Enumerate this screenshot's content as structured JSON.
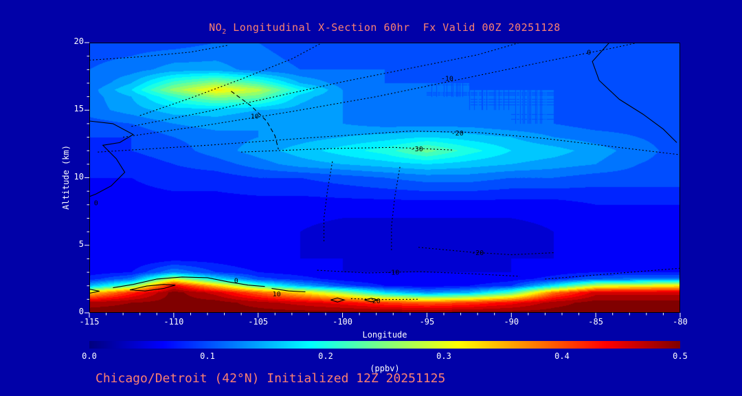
{
  "figure": {
    "title": {
      "prefix": "NO",
      "sub": "2",
      "rest": " Longitudinal X-Section 60hr  Fx Valid 00Z 20251128"
    },
    "footer": "Chicago/Detroit (42°N) Initialized 12Z 20251125"
  },
  "colors": {
    "background": "#0101a8",
    "title_text": "#fa8072",
    "axis_text": "#ffffff",
    "contour_lines": "#000000"
  },
  "axes": {
    "xlabel": "Longitude",
    "ylabel": "Altitude (km)",
    "x_ticks": {
      "values": [
        -115,
        -110,
        -105,
        -100,
        -95,
        -90,
        -85,
        -80
      ],
      "labels": [
        "-115",
        "-110",
        "-105",
        "-100",
        "-95",
        "-90",
        "-85",
        "-80"
      ]
    },
    "y_ticks": {
      "values": [
        0,
        5,
        10,
        15,
        20
      ],
      "labels": [
        "0",
        "5",
        "10",
        "15",
        "20"
      ]
    }
  },
  "colorbar": {
    "min": 0.0,
    "max": 0.5,
    "tick_values": [
      0.0,
      0.1,
      0.2,
      0.3,
      0.4,
      0.5
    ],
    "tick_labels": [
      "0.0",
      "0.1",
      "0.2",
      "0.3",
      "0.4",
      "0.5"
    ],
    "label": "(ppbv)"
  },
  "chart_data": {
    "type": "heatmap",
    "subtype": "filled-contour-cross-section",
    "title": "NO2 Longitudinal X-Section 60hr  Fx Valid 00Z 20251128",
    "xlabel": "Longitude",
    "ylabel": "Altitude (km)",
    "xlim": [
      -115,
      -80
    ],
    "ylim": [
      0,
      20
    ],
    "value_units": "ppbv",
    "value_range": [
      0,
      0.5
    ],
    "contour_interval": 0.02,
    "colormap": "jet",
    "y_order": "ascending",
    "x": [
      -115,
      -112.5,
      -110,
      -107.5,
      -105,
      -102.5,
      -100,
      -97.5,
      -95,
      -92.5,
      -90,
      -87.5,
      -85,
      -82.5,
      -80
    ],
    "y": [
      0,
      0.75,
      1.5,
      2,
      2.5,
      3,
      4,
      6,
      8,
      10,
      11,
      12,
      13,
      14,
      15,
      16,
      16.5,
      17,
      18,
      20
    ],
    "values": [
      [
        0.5,
        0.5,
        0.5,
        0.5,
        0.5,
        0.5,
        0.5,
        0.5,
        0.5,
        0.5,
        0.5,
        0.5,
        0.5,
        0.5,
        0.5
      ],
      [
        0.48,
        0.49,
        0.5,
        0.5,
        0.48,
        0.46,
        0.44,
        0.41,
        0.39,
        0.41,
        0.44,
        0.48,
        0.5,
        0.5,
        0.5
      ],
      [
        0.33,
        0.42,
        0.5,
        0.46,
        0.39,
        0.33,
        0.26,
        0.17,
        0.13,
        0.15,
        0.22,
        0.38,
        0.46,
        0.46,
        0.46
      ],
      [
        0.15,
        0.24,
        0.45,
        0.34,
        0.22,
        0.15,
        0.1,
        0.07,
        0.06,
        0.07,
        0.09,
        0.18,
        0.29,
        0.31,
        0.32
      ],
      [
        0.08,
        0.12,
        0.29,
        0.18,
        0.1,
        0.08,
        0.06,
        0.05,
        0.05,
        0.05,
        0.06,
        0.08,
        0.11,
        0.12,
        0.12
      ],
      [
        0.06,
        0.07,
        0.13,
        0.09,
        0.07,
        0.06,
        0.05,
        0.05,
        0.05,
        0.05,
        0.05,
        0.06,
        0.07,
        0.07,
        0.07
      ],
      [
        0.05,
        0.05,
        0.06,
        0.06,
        0.05,
        0.05,
        0.05,
        0.04,
        0.04,
        0.04,
        0.05,
        0.05,
        0.06,
        0.06,
        0.06
      ],
      [
        0.05,
        0.05,
        0.05,
        0.05,
        0.05,
        0.05,
        0.04,
        0.04,
        0.04,
        0.04,
        0.04,
        0.05,
        0.05,
        0.05,
        0.05
      ],
      [
        0.06,
        0.06,
        0.06,
        0.06,
        0.06,
        0.06,
        0.06,
        0.06,
        0.06,
        0.06,
        0.06,
        0.06,
        0.07,
        0.07,
        0.07
      ],
      [
        0.07,
        0.07,
        0.08,
        0.08,
        0.09,
        0.09,
        0.1,
        0.11,
        0.12,
        0.12,
        0.11,
        0.11,
        0.1,
        0.1,
        0.1
      ],
      [
        0.08,
        0.08,
        0.09,
        0.1,
        0.12,
        0.14,
        0.15,
        0.16,
        0.17,
        0.16,
        0.15,
        0.14,
        0.13,
        0.11,
        0.1
      ],
      [
        0.08,
        0.09,
        0.1,
        0.12,
        0.14,
        0.16,
        0.18,
        0.2,
        0.24,
        0.2,
        0.17,
        0.16,
        0.14,
        0.12,
        0.1
      ],
      [
        0.09,
        0.09,
        0.11,
        0.12,
        0.13,
        0.14,
        0.15,
        0.16,
        0.17,
        0.16,
        0.15,
        0.13,
        0.12,
        0.11,
        0.1
      ],
      [
        0.1,
        0.11,
        0.13,
        0.14,
        0.13,
        0.13,
        0.13,
        0.12,
        0.12,
        0.12,
        0.11,
        0.11,
        0.1,
        0.1,
        0.1
      ],
      [
        0.12,
        0.14,
        0.16,
        0.16,
        0.15,
        0.14,
        0.13,
        0.12,
        0.12,
        0.11,
        0.11,
        0.11,
        0.1,
        0.1,
        0.1
      ],
      [
        0.12,
        0.15,
        0.21,
        0.26,
        0.24,
        0.16,
        0.13,
        0.12,
        0.11,
        0.11,
        0.11,
        0.11,
        0.1,
        0.1,
        0.1
      ],
      [
        0.12,
        0.17,
        0.26,
        0.32,
        0.28,
        0.19,
        0.13,
        0.12,
        0.11,
        0.11,
        0.11,
        0.11,
        0.1,
        0.1,
        0.1
      ],
      [
        0.11,
        0.15,
        0.22,
        0.26,
        0.22,
        0.15,
        0.12,
        0.11,
        0.11,
        0.11,
        0.1,
        0.1,
        0.1,
        0.1,
        0.1
      ],
      [
        0.11,
        0.12,
        0.14,
        0.14,
        0.12,
        0.11,
        0.11,
        0.11,
        0.1,
        0.1,
        0.1,
        0.1,
        0.1,
        0.09,
        0.09
      ],
      [
        0.1,
        0.1,
        0.1,
        0.11,
        0.11,
        0.1,
        0.1,
        0.1,
        0.1,
        0.1,
        0.1,
        0.1,
        0.1,
        0.09,
        0.09
      ]
    ],
    "contour_overlay": [
      {
        "label": "0",
        "style": "solid",
        "points": [
          [
            -84.2,
            20
          ],
          [
            -85.2,
            18.6
          ],
          [
            -84.8,
            17.2
          ],
          [
            -83.6,
            15.8
          ],
          [
            -82.2,
            14.7
          ],
          [
            -81.0,
            13.6
          ],
          [
            -80.2,
            12.6
          ]
        ],
        "label_pos": [
          -85.4,
          19.3
        ]
      },
      {
        "label": "0",
        "style": "solid",
        "points": [
          [
            -115,
            14.2
          ],
          [
            -113.6,
            14.0
          ],
          [
            -112.4,
            13.2
          ],
          [
            -113.2,
            12.6
          ],
          [
            -114.2,
            12.4
          ],
          [
            -113.4,
            11.4
          ],
          [
            -112.9,
            10.4
          ],
          [
            -113.7,
            9.4
          ],
          [
            -114.6,
            8.8
          ],
          [
            -115,
            8.6
          ]
        ],
        "label_pos": [
          -114.6,
          8.15
        ]
      },
      {
        "label": "-10",
        "style": "dotted",
        "points": [
          [
            -113,
            13.0
          ],
          [
            -108,
            13.9
          ],
          [
            -103,
            14.9
          ],
          [
            -98,
            16.0
          ],
          [
            -93,
            17.3
          ],
          [
            -88,
            18.6
          ],
          [
            -84,
            19.6
          ],
          [
            -82.5,
            20
          ]
        ],
        "label_pos": [
          -93.8,
          17.35
        ]
      },
      {
        "label": "-20",
        "style": "dotted",
        "points": [
          [
            -114.5,
            11.9
          ],
          [
            -108,
            12.4
          ],
          [
            -102,
            12.95
          ],
          [
            -96,
            13.45
          ],
          [
            -92,
            13.35
          ],
          [
            -88,
            12.9
          ],
          [
            -84,
            12.3
          ],
          [
            -80,
            11.7
          ]
        ],
        "label_pos": [
          -93.2,
          13.3
        ]
      },
      {
        "label": "-30",
        "style": "dotted",
        "points": [
          [
            -106,
            11.9
          ],
          [
            -101,
            12.15
          ],
          [
            -97,
            12.25
          ],
          [
            -93.5,
            12.05
          ]
        ],
        "label_pos": [
          -95.6,
          12.15
        ]
      },
      {
        "label": "10",
        "style": "dashed",
        "points": [
          [
            -106.6,
            16.4
          ],
          [
            -105.4,
            15.3
          ],
          [
            -104.5,
            14.2
          ],
          [
            -104.0,
            13.1
          ],
          [
            -103.8,
            12.1
          ]
        ],
        "label_pos": [
          -105.2,
          14.55
        ]
      },
      {
        "label": "",
        "style": "dotted",
        "points": [
          [
            -112,
            14.6
          ],
          [
            -109,
            15.9
          ],
          [
            -106,
            17.3
          ],
          [
            -103,
            18.8
          ],
          [
            -101.2,
            20
          ]
        ]
      },
      {
        "label": "",
        "style": "dotted",
        "points": [
          [
            -112.5,
            13.8
          ],
          [
            -108,
            14.9
          ],
          [
            -104,
            16.0
          ],
          [
            -100,
            17.1
          ],
          [
            -96,
            18.1
          ],
          [
            -92,
            19.1
          ],
          [
            -89.5,
            20
          ]
        ]
      },
      {
        "label": "",
        "style": "dotted",
        "points": [
          [
            -115,
            18.7
          ],
          [
            -112,
            18.95
          ],
          [
            -109,
            19.3
          ],
          [
            -106.8,
            19.8
          ]
        ]
      },
      {
        "label": "",
        "style": "dotted",
        "points": [
          [
            -100.6,
            11.2
          ],
          [
            -100.9,
            9.0
          ],
          [
            -101.1,
            7.0
          ],
          [
            -101.1,
            5.2
          ]
        ]
      },
      {
        "label": "",
        "style": "dotted",
        "points": [
          [
            -96.6,
            10.8
          ],
          [
            -96.9,
            8.6
          ],
          [
            -97.1,
            6.4
          ],
          [
            -97.1,
            4.6
          ]
        ]
      },
      {
        "label": "-10",
        "style": "dotted",
        "points": [
          [
            -101.5,
            3.15
          ],
          [
            -98.5,
            2.95
          ],
          [
            -95.5,
            3.05
          ],
          [
            -92.5,
            2.9
          ],
          [
            -89.5,
            2.7
          ]
        ],
        "label_pos": [
          -97.0,
          3.0
        ]
      },
      {
        "label": "-20",
        "style": "dotted",
        "points": [
          [
            -95.5,
            4.85
          ],
          [
            -92.5,
            4.5
          ],
          [
            -90,
            4.3
          ],
          [
            -87.5,
            4.45
          ]
        ],
        "label_pos": [
          -92.0,
          4.45
        ]
      },
      {
        "label": "",
        "style": "dotted",
        "points": [
          [
            -88,
            2.5
          ],
          [
            -85,
            2.8
          ],
          [
            -82,
            3.1
          ],
          [
            -80,
            3.3
          ]
        ]
      },
      {
        "label": "0",
        "style": "solid",
        "points": [
          [
            -113.6,
            1.85
          ],
          [
            -112.4,
            2.1
          ],
          [
            -111,
            2.5
          ],
          [
            -109.5,
            2.65
          ],
          [
            -108,
            2.6
          ],
          [
            -106.8,
            2.3
          ],
          [
            -105.6,
            2.05
          ],
          [
            -104.6,
            1.95
          ]
        ],
        "label_pos": [
          -106.3,
          2.4
        ]
      },
      {
        "label": "10",
        "style": "solid",
        "points": [
          [
            -104.2,
            1.8
          ],
          [
            -103.2,
            1.62
          ],
          [
            -102.2,
            1.55
          ]
        ],
        "label_pos": [
          -103.9,
          1.4
        ]
      },
      {
        "label": "",
        "style": "solid",
        "points": [
          [
            -112.6,
            1.7
          ],
          [
            -111.6,
            1.98
          ],
          [
            -110.6,
            2.1
          ],
          [
            -109.9,
            2.05
          ],
          [
            -110.6,
            1.8
          ],
          [
            -111.7,
            1.62
          ],
          [
            -112.6,
            1.7
          ]
        ]
      },
      {
        "label": "",
        "style": "solid",
        "points": [
          [
            -100.7,
            0.95
          ],
          [
            -100.3,
            1.1
          ],
          [
            -99.9,
            0.95
          ],
          [
            -100.3,
            0.8
          ],
          [
            -100.7,
            0.95
          ]
        ]
      },
      {
        "label": "",
        "style": "solid",
        "points": [
          [
            -98.7,
            0.95
          ],
          [
            -98.3,
            1.08
          ],
          [
            -97.9,
            0.95
          ],
          [
            -98.3,
            0.82
          ],
          [
            -98.7,
            0.95
          ]
        ]
      },
      {
        "label": "",
        "style": "solid",
        "points": [
          [
            -115,
            1.75
          ],
          [
            -114.4,
            1.6
          ],
          [
            -115,
            1.45
          ]
        ]
      },
      {
        "label": "20",
        "style": "dotted",
        "points": [
          [
            -99.5,
            1.05
          ],
          [
            -97.5,
            0.98
          ],
          [
            -95.5,
            1.0
          ]
        ],
        "label_pos": [
          -98.0,
          0.9
        ]
      }
    ]
  }
}
